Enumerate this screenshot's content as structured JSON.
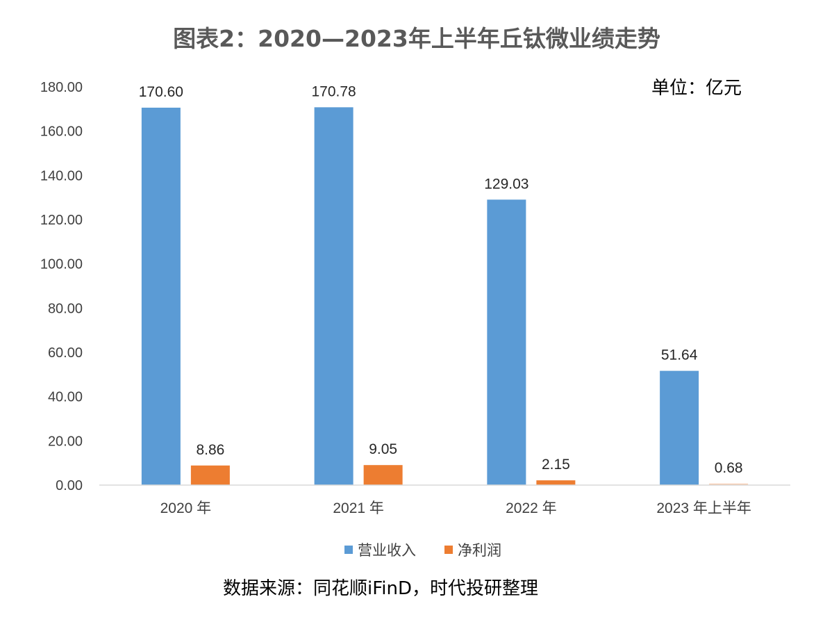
{
  "chart_data": {
    "type": "bar",
    "title": "图表2：2020—2023年上半年丘钛微业绩走势",
    "unit_label": "单位：亿元",
    "source": "数据来源：同花顺iFinD，时代投研整理",
    "categories": [
      "2020 年",
      "2021 年",
      "2022 年",
      "2023 年上半年"
    ],
    "series": [
      {
        "name": "营业收入",
        "color": "#5B9BD5",
        "values": [
          170.6,
          170.78,
          129.03,
          51.64
        ]
      },
      {
        "name": "净利润",
        "color": "#ED7D31",
        "values": [
          8.86,
          9.05,
          2.15,
          0.68
        ]
      }
    ],
    "y_ticks": [
      "0.00",
      "20.00",
      "40.00",
      "60.00",
      "80.00",
      "100.00",
      "120.00",
      "140.00",
      "160.00",
      "180.00"
    ],
    "ylim": [
      0,
      180
    ],
    "grid": false,
    "legend_position": "bottom"
  }
}
